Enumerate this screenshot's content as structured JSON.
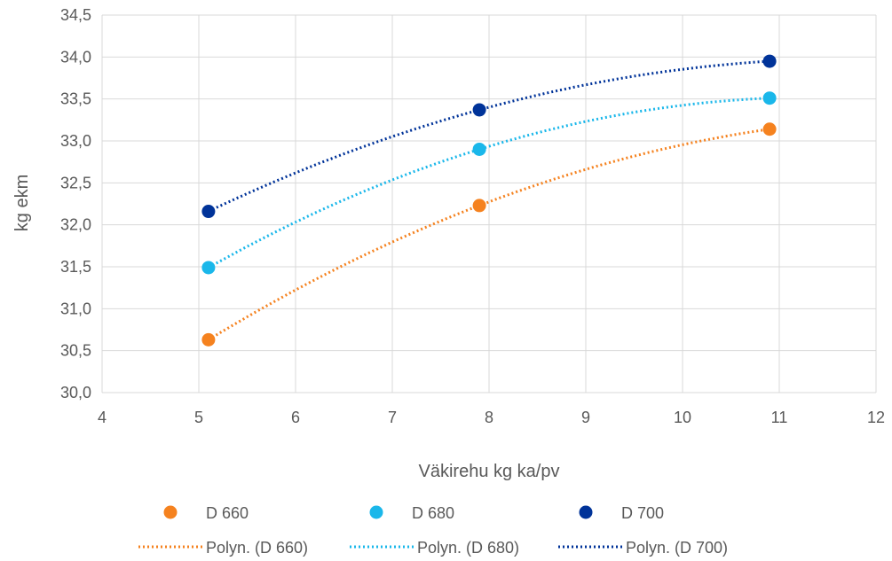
{
  "chart_data": {
    "type": "scatter",
    "xlabel": "Väkirehu kg ka/pv",
    "ylabel": "kg ekm",
    "xlim": [
      4,
      12
    ],
    "ylim": [
      30.0,
      34.5
    ],
    "x_ticks": [
      "4",
      "5",
      "6",
      "7",
      "8",
      "9",
      "10",
      "11",
      "12"
    ],
    "y_ticks": [
      "30,0",
      "30,5",
      "31,0",
      "31,5",
      "32,0",
      "32,5",
      "33,0",
      "33,5",
      "34,0",
      "34,5"
    ],
    "grid": "vertical and horizontal",
    "legend_position": "bottom",
    "series": [
      {
        "name": "D 660",
        "color": "#f5821f",
        "x": [
          5.1,
          7.9,
          10.9
        ],
        "y": [
          30.63,
          32.23,
          33.14
        ]
      },
      {
        "name": "D 680",
        "color": "#1ab7ea",
        "x": [
          5.1,
          7.9,
          10.9
        ],
        "y": [
          31.49,
          32.9,
          33.51
        ]
      },
      {
        "name": "D 700",
        "color": "#003399",
        "x": [
          5.1,
          7.9,
          10.9
        ],
        "y": [
          32.16,
          33.37,
          33.95
        ]
      }
    ],
    "trendlines": [
      {
        "name": "Polyn. (D 660)",
        "series": "D 660",
        "kind": "polynomial order 2",
        "style": "dotted"
      },
      {
        "name": "Polyn. (D 680)",
        "series": "D 680",
        "kind": "polynomial order 2",
        "style": "dotted"
      },
      {
        "name": "Polyn. (D 700)",
        "series": "D 700",
        "kind": "polynomial order 2",
        "style": "dotted"
      }
    ]
  }
}
